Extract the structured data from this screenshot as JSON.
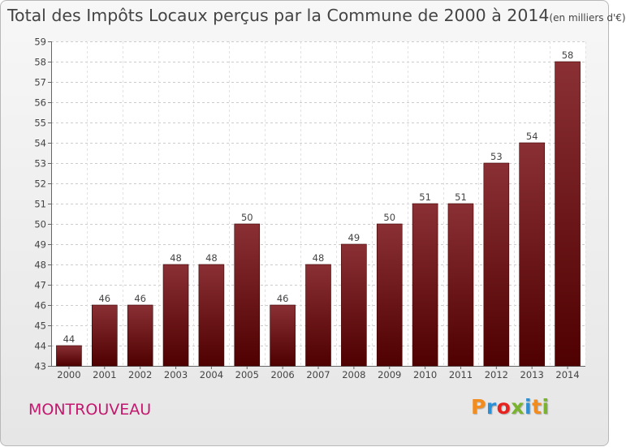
{
  "title": "Total des Impôts Locaux perçus par la Commune de 2000 à 2014",
  "title_unit": "(en milliers d'€)",
  "town": "MONTROUVEAU",
  "logo": {
    "text": "Proxiti",
    "colors": [
      "#f28c1e",
      "#2d8fd4",
      "#e8231f",
      "#7ab32e",
      "#2d8fd4",
      "#f28c1e",
      "#7ab32e"
    ]
  },
  "colors": {
    "bar_top": "#8a3035",
    "bar_bottom": "#4f0000",
    "town": "#c4176e"
  },
  "chart_data": {
    "type": "bar",
    "title": "Total des Impôts Locaux perçus par la Commune de 2000 à 2014 (en milliers d'€)",
    "xlabel": "",
    "ylabel": "",
    "categories": [
      "2000",
      "2001",
      "2002",
      "2003",
      "2004",
      "2005",
      "2006",
      "2007",
      "2008",
      "2009",
      "2010",
      "2011",
      "2012",
      "2013",
      "2014"
    ],
    "values": [
      44,
      46,
      46,
      48,
      48,
      50,
      46,
      48,
      49,
      50,
      51,
      51,
      53,
      54,
      58
    ],
    "ylim": [
      43,
      59
    ],
    "yticks": [
      43,
      44,
      45,
      46,
      47,
      48,
      49,
      50,
      51,
      52,
      53,
      54,
      55,
      56,
      57,
      58,
      59
    ],
    "grid": true,
    "data_labels": true
  }
}
